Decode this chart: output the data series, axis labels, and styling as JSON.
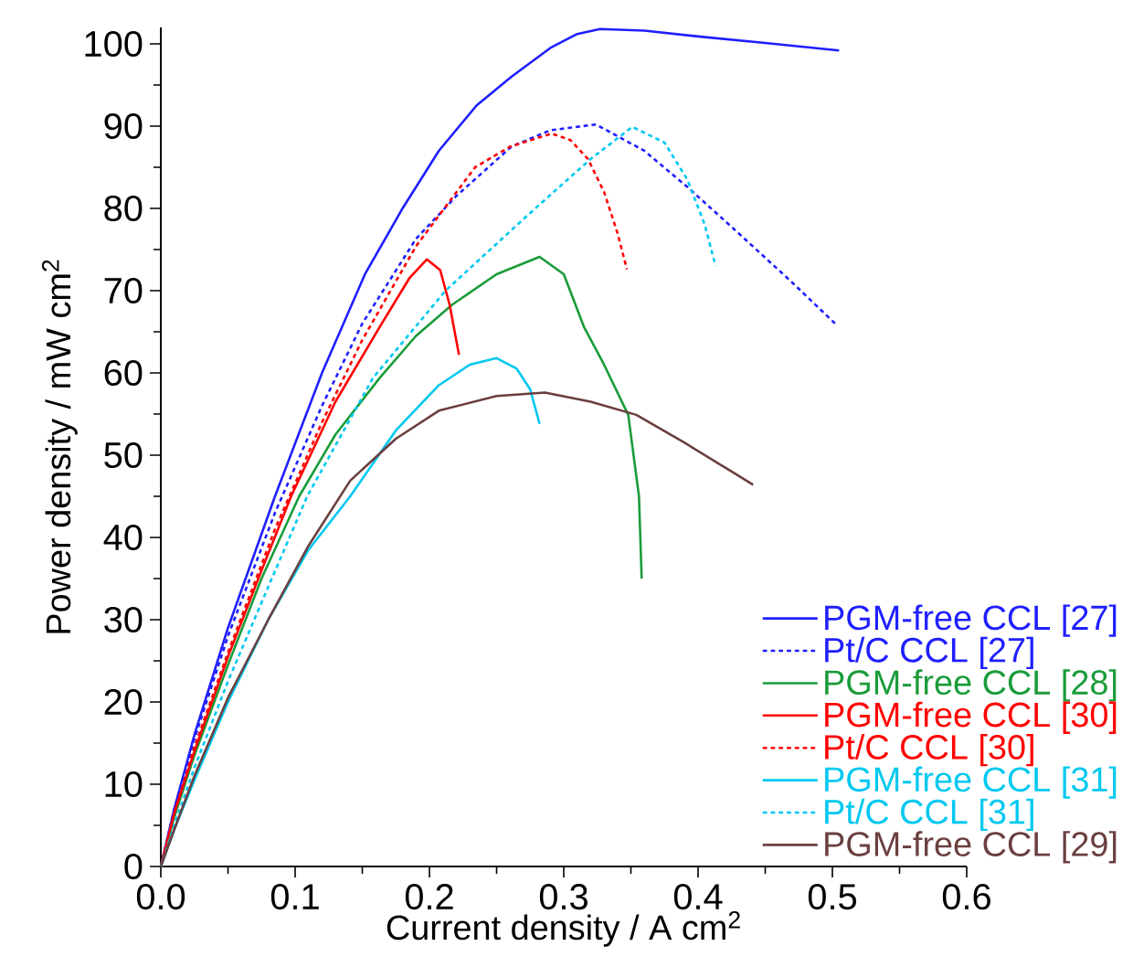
{
  "chart_data": {
    "type": "line",
    "xlabel": "Current density / A cm$^{2}$",
    "ylabel": "Power density / mW cm$^{2}$",
    "xlim": [
      0,
      0.6
    ],
    "ylim": [
      0,
      102
    ],
    "xticks": [
      {
        "value": 0,
        "label": "0.0"
      },
      0.1,
      0.2,
      0.3,
      0.4,
      0.5,
      0.6
    ],
    "yticks": [
      0,
      10,
      20,
      30,
      40,
      50,
      60,
      70,
      80,
      90,
      100
    ],
    "legend": "bottom right",
    "series": [
      {
        "name": "PGM-free CCL [27]",
        "color": "#1f1fff",
        "line_style": "solid",
        "x": [
          0,
          0.01,
          0.025,
          0.05,
          0.085,
          0.12,
          0.152,
          0.18,
          0.207,
          0.235,
          0.261,
          0.29,
          0.31,
          0.327,
          0.36,
          0.4,
          0.45,
          0.505
        ],
        "values": [
          0,
          7,
          16,
          29,
          45,
          60,
          72,
          80,
          87,
          92.5,
          96,
          99.5,
          101.2,
          101.8,
          101.6,
          100.9,
          100.1,
          99.2
        ]
      },
      {
        "name": "Pt/C CCL [27]",
        "color": "#1f1fff",
        "line_style": "dotted",
        "x": [
          0,
          0.01,
          0.025,
          0.05,
          0.085,
          0.12,
          0.15,
          0.19,
          0.22,
          0.261,
          0.29,
          0.324,
          0.36,
          0.392,
          0.43,
          0.47,
          0.502
        ],
        "values": [
          0,
          7,
          15.5,
          28,
          43,
          56,
          66,
          76.3,
          81.5,
          87.5,
          89.5,
          90.2,
          87,
          82.6,
          77,
          71,
          66
        ]
      },
      {
        "name": "PGM-free CCL [28]",
        "color": "#1a9c3a",
        "line_style": "solid",
        "x": [
          0,
          0.01,
          0.025,
          0.05,
          0.075,
          0.103,
          0.13,
          0.163,
          0.19,
          0.217,
          0.25,
          0.282,
          0.3,
          0.315,
          0.33,
          0.348,
          0.356,
          0.358
        ],
        "values": [
          0,
          6,
          13.5,
          24.5,
          35,
          45,
          52.5,
          59.4,
          64.5,
          68.3,
          72,
          74.1,
          72,
          65.6,
          61,
          54.9,
          45,
          35
        ]
      },
      {
        "name": "PGM-free CCL [30]",
        "color": "#ff0000",
        "line_style": "solid",
        "x": [
          0,
          0.01,
          0.025,
          0.05,
          0.075,
          0.097,
          0.13,
          0.163,
          0.185,
          0.198,
          0.208,
          0.215,
          0.222
        ],
        "values": [
          0,
          6.5,
          14,
          25.5,
          36,
          45,
          56.5,
          65.6,
          71.5,
          73.8,
          72.5,
          68.3,
          62.2
        ]
      },
      {
        "name": "Pt/C CCL [30]",
        "color": "#ff0000",
        "line_style": "dotted",
        "x": [
          0,
          0.01,
          0.025,
          0.05,
          0.085,
          0.12,
          0.15,
          0.19,
          0.234,
          0.26,
          0.291,
          0.305,
          0.318,
          0.33,
          0.34,
          0.347
        ],
        "values": [
          0,
          6.5,
          14.5,
          26,
          41,
          54,
          64,
          75.4,
          85,
          87.5,
          89.1,
          88.3,
          86,
          82,
          77,
          72.6
        ]
      },
      {
        "name": "PGM-free CCL [31]",
        "color": "#00c8f0",
        "line_style": "solid",
        "x": [
          0,
          0.01,
          0.025,
          0.05,
          0.08,
          0.11,
          0.141,
          0.175,
          0.207,
          0.23,
          0.25,
          0.265,
          0.275,
          0.282
        ],
        "values": [
          0,
          4.5,
          10.5,
          20,
          30,
          38.5,
          45,
          53,
          58.5,
          61,
          61.8,
          60.5,
          58,
          53.8
        ]
      },
      {
        "name": "Pt/C CCL [31]",
        "color": "#00c8f0",
        "line_style": "dotted",
        "x": [
          0,
          0.01,
          0.025,
          0.05,
          0.08,
          0.109,
          0.158,
          0.212,
          0.272,
          0.32,
          0.351,
          0.375,
          0.392,
          0.405,
          0.413
        ],
        "values": [
          0,
          5,
          12,
          22.5,
          34,
          45,
          59.4,
          70,
          79,
          86,
          89.9,
          88,
          83.5,
          78,
          73
        ]
      },
      {
        "name": "PGM-free CCL [29]",
        "color": "#6b3f3f",
        "line_style": "solid",
        "x": [
          0,
          0.01,
          0.025,
          0.05,
          0.08,
          0.11,
          0.141,
          0.175,
          0.207,
          0.25,
          0.286,
          0.32,
          0.354,
          0.39,
          0.42,
          0.441
        ],
        "values": [
          0,
          4.5,
          11,
          20.5,
          30,
          39,
          46.9,
          52,
          55.4,
          57.2,
          57.6,
          56.5,
          54.9,
          51.5,
          48.5,
          46.4
        ]
      }
    ]
  }
}
